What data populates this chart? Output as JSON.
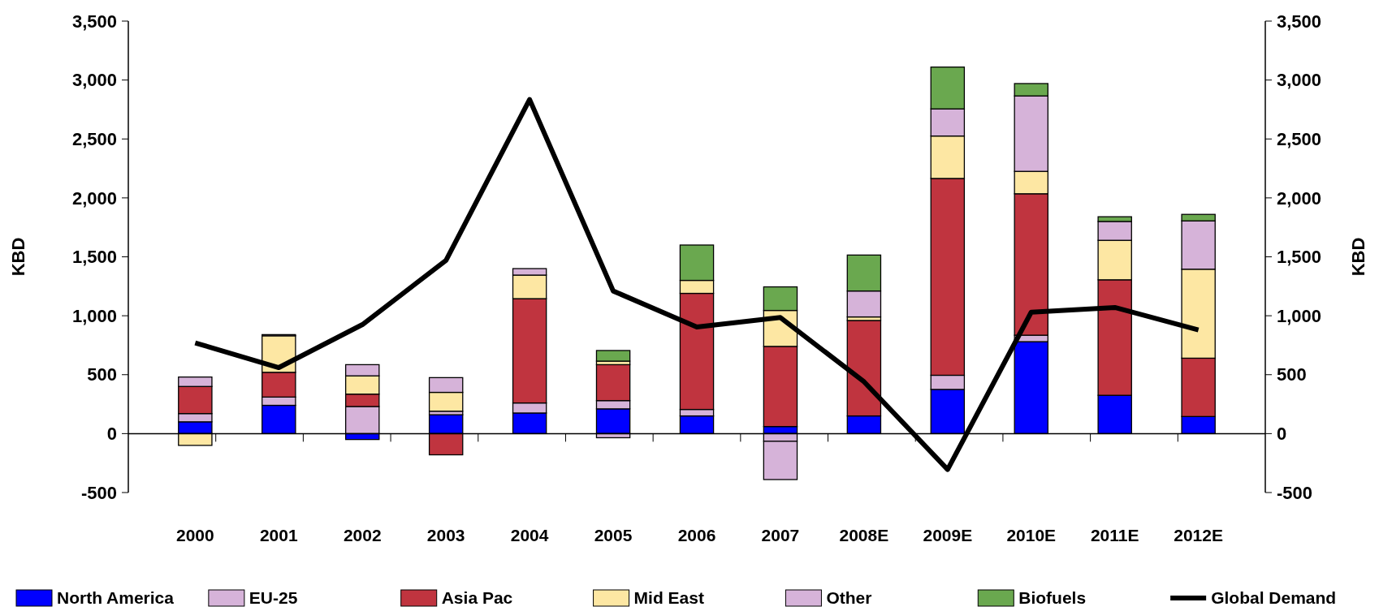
{
  "chart_data": {
    "type": "bar",
    "stacked": true,
    "categories": [
      "2000",
      "2001",
      "2002",
      "2003",
      "2004",
      "2005",
      "2006",
      "2007",
      "2008E",
      "2009E",
      "2010E",
      "2011E",
      "2012E"
    ],
    "series": [
      {
        "name": "North America",
        "color": "#0000ff",
        "values": [
          100,
          240,
          -50,
          160,
          175,
          210,
          150,
          60,
          150,
          375,
          780,
          325,
          145
        ]
      },
      {
        "name": "EU-25",
        "color": "#d6b3d9",
        "values": [
          70,
          70,
          230,
          30,
          85,
          70,
          55,
          -65,
          0,
          120,
          55,
          0,
          0
        ]
      },
      {
        "name": "Asia Pac",
        "color": "#c0343f",
        "values": [
          230,
          210,
          105,
          -180,
          885,
          305,
          985,
          680,
          810,
          1670,
          1200,
          980,
          495
        ]
      },
      {
        "name": "Mid East",
        "color": "#fde7a3",
        "values": [
          -100,
          310,
          155,
          160,
          200,
          30,
          110,
          305,
          30,
          360,
          190,
          335,
          755
        ]
      },
      {
        "name": "Other",
        "color": "#d6b3d9",
        "values": [
          80,
          10,
          95,
          125,
          55,
          -35,
          0,
          -325,
          220,
          230,
          640,
          160,
          410
        ]
      },
      {
        "name": "Biofuels",
        "color": "#6aa84f",
        "values": [
          0,
          0,
          0,
          0,
          0,
          90,
          300,
          200,
          305,
          355,
          105,
          40,
          55
        ]
      },
      {
        "name": "Global Demand",
        "type": "line",
        "color": "#000000",
        "values": [
          770,
          560,
          925,
          1470,
          2835,
          1210,
          905,
          985,
          440,
          -305,
          1030,
          1070,
          880
        ]
      }
    ],
    "ylabel": "KBD",
    "y2label": "KBD",
    "ylim": [
      -500,
      3500
    ],
    "yticks": [
      {
        "value": -500,
        "label": "-500"
      },
      0,
      500,
      {
        "value": 1000,
        "label": "1,000"
      },
      {
        "value": 1500,
        "label": "1,500"
      },
      {
        "value": 2000,
        "label": "2,000"
      },
      {
        "value": 2500,
        "label": "2,500"
      },
      {
        "value": 3000,
        "label": "3,000"
      },
      {
        "value": 3500,
        "label": "3,500"
      }
    ],
    "y2lim": [
      -500,
      3500
    ],
    "y2ticks": [
      {
        "value": -500,
        "label": "-500"
      },
      0,
      500,
      {
        "value": 1000,
        "label": "1,000"
      },
      {
        "value": 1500,
        "label": "1,500"
      },
      {
        "value": 2000,
        "label": "2,000"
      },
      {
        "value": 2500,
        "label": "2,500"
      },
      {
        "value": 3000,
        "label": "3,000"
      },
      {
        "value": 3500,
        "label": "3,500"
      }
    ],
    "legend": "bottom"
  }
}
